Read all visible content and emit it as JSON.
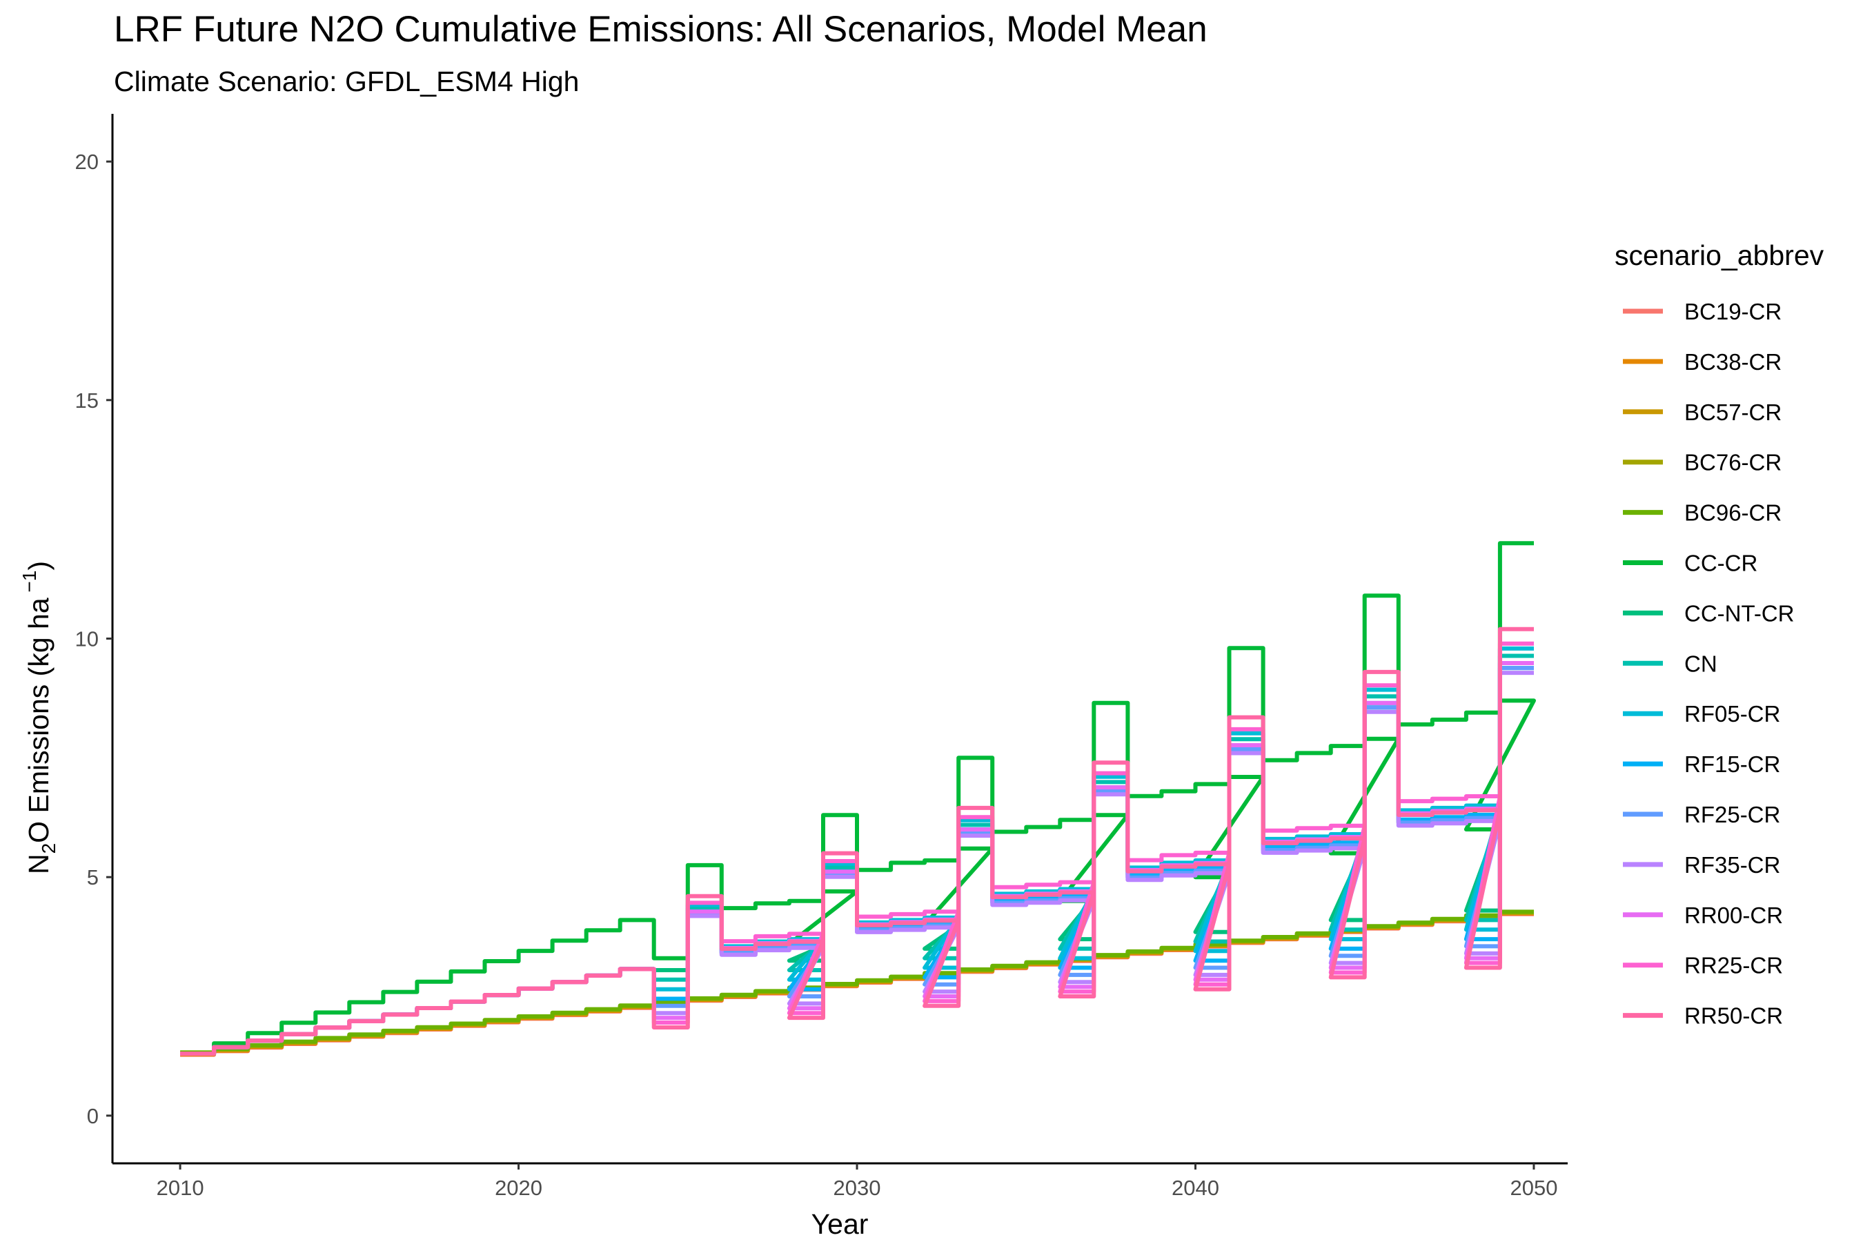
{
  "chart_data": {
    "type": "line",
    "title": "LRF  Future N2O Cumulative Emissions: All Scenarios, Model Mean",
    "subtitle": "Climate Scenario: GFDL_ESM4 High",
    "xlabel": "Year",
    "ylabel_main": "N",
    "ylabel_sub": "2",
    "ylabel_rest": "O Emissions (kg ha",
    "ylabel_sup": " −1",
    "ylabel_close": ")",
    "xlim": [
      2008,
      2051
    ],
    "ylim": [
      -1,
      21
    ],
    "xticks": [
      2010,
      2020,
      2030,
      2040,
      2050
    ],
    "yticks": [
      0,
      5,
      10,
      15,
      20
    ],
    "grid": false,
    "legend_placement": "right",
    "legend_title": "scenario_abbrev",
    "series": [
      {
        "name": "BC19-CR",
        "color": "#F8766D"
      },
      {
        "name": "BC38-CR",
        "color": "#E58700"
      },
      {
        "name": "BC57-CR",
        "color": "#C99800"
      },
      {
        "name": "BC76-CR",
        "color": "#A3A500"
      },
      {
        "name": "BC96-CR",
        "color": "#6BB100"
      },
      {
        "name": "CC-CR",
        "color": "#00BA38"
      },
      {
        "name": "CC-NT-CR",
        "color": "#00BF7D"
      },
      {
        "name": "CN",
        "color": "#00C0AF"
      },
      {
        "name": "RF05-CR",
        "color": "#00BCD8"
      },
      {
        "name": "RF15-CR",
        "color": "#00B0F6"
      },
      {
        "name": "RF25-CR",
        "color": "#619CFF"
      },
      {
        "name": "RF35-CR",
        "color": "#B983FF"
      },
      {
        "name": "RR00-CR",
        "color": "#E76BF3"
      },
      {
        "name": "RR25-CR",
        "color": "#FD61D1"
      },
      {
        "name": "RR50-CR",
        "color": "#FF67A4"
      }
    ],
    "model": {
      "years_start": 2010,
      "years_end": 2049,
      "bc_start": 1.3,
      "bc_end": 4.25,
      "cycle_start_year": 2024,
      "cycle_length": 4,
      "cycles": [
        {
          "low": 1.85,
          "peak": 4.6,
          "plateau": [
            3.55,
            3.65,
            3.7
          ]
        },
        {
          "low": 2.05,
          "peak": 5.5,
          "plateau": [
            4.05,
            4.1,
            4.15
          ]
        },
        {
          "low": 2.3,
          "peak": 6.45,
          "plateau": [
            4.65,
            4.7,
            4.75
          ]
        },
        {
          "low": 2.5,
          "peak": 7.4,
          "plateau": [
            5.2,
            5.3,
            5.35
          ]
        },
        {
          "low": 2.65,
          "peak": 8.35,
          "plateau": [
            5.8,
            5.85,
            5.9
          ]
        },
        {
          "low": 2.9,
          "peak": 9.3,
          "plateau": [
            6.4,
            6.45,
            6.5
          ]
        },
        {
          "low": 3.1,
          "peak": 10.2,
          "plateau": []
        }
      ],
      "cc_cycles": [
        {
          "low": 3.3,
          "peak": 5.25,
          "plateau": [
            4.35,
            4.45,
            4.5,
            4.7
          ]
        },
        {
          "low": 3.6,
          "peak": 6.3,
          "plateau": [
            5.15,
            5.3,
            5.35,
            5.6
          ]
        },
        {
          "low": 4.0,
          "peak": 7.5,
          "plateau": [
            5.95,
            6.05,
            6.2,
            6.3
          ]
        },
        {
          "low": 4.5,
          "peak": 8.65,
          "plateau": [
            6.7,
            6.8,
            6.95,
            7.1
          ]
        },
        {
          "low": 5.0,
          "peak": 9.8,
          "plateau": [
            7.45,
            7.6,
            7.75,
            7.9
          ]
        },
        {
          "low": 5.5,
          "peak": 10.9,
          "plateau": [
            8.2,
            8.3,
            8.45,
            8.7
          ]
        },
        {
          "low": 6.0,
          "peak": 12.0,
          "plateau": []
        }
      ],
      "cc_ramp_end": 4.1
    }
  }
}
